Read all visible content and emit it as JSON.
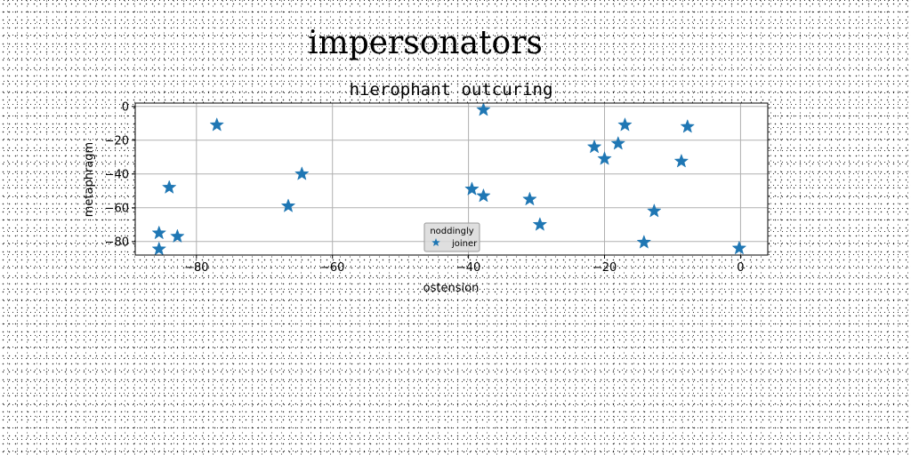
{
  "chart_data": {
    "type": "scatter",
    "suptitle": "impersonators",
    "title": "hierophant outcuring",
    "xlabel": "ostension",
    "ylabel": "metaphragm",
    "xlim": [
      -89,
      4
    ],
    "ylim": [
      -88,
      2
    ],
    "xticks": [
      -80,
      -60,
      -40,
      -20,
      0
    ],
    "yticks": [
      0,
      -20,
      -40,
      -60,
      -80
    ],
    "grid": true,
    "marker": "star",
    "color": "#1f77b4",
    "legend": {
      "title": "noddingly",
      "placement": "lower-center",
      "entries": [
        "joiner"
      ]
    },
    "series": [
      {
        "name": "joiner",
        "x": [
          -85.5,
          -85.5,
          -84,
          -82.8,
          -77,
          -66.5,
          -64.5,
          -39.5,
          -37.8,
          -37.8,
          -31,
          -29.5,
          -21.5,
          -20,
          -18,
          -17,
          -14.2,
          -12.7,
          -8.7,
          -7.8,
          -0.2
        ],
        "y": [
          -84.5,
          -75,
          -48,
          -77,
          -11,
          -59,
          -40,
          -49,
          -53,
          -2,
          -55,
          -70,
          -24,
          -31,
          -22,
          -11,
          -80.5,
          -62,
          -32.5,
          -12,
          -84
        ]
      }
    ]
  }
}
